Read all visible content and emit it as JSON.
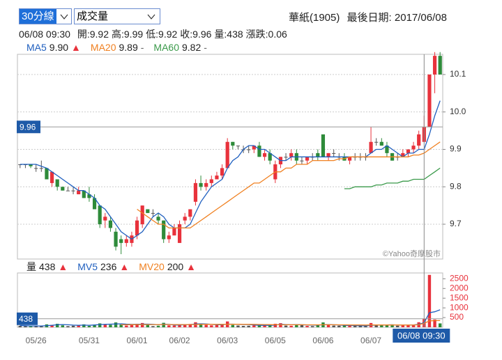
{
  "controls": {
    "period": "30分線",
    "indicator": "成交量"
  },
  "header": {
    "title": "華紙(1905)",
    "last_date": "最後日期: 2017/06/08"
  },
  "info": [
    "開:9.92",
    "高:9.99",
    "低:9.92",
    "收:9.96",
    "量:438",
    "漲跌:0.06"
  ],
  "chart_data": [
    {
      "type": "candlestick",
      "categories": [
        null,
        null,
        null,
        "05/26",
        null,
        null,
        null,
        null,
        null,
        null,
        null,
        null,
        null,
        "05/31",
        null,
        null,
        null,
        null,
        null,
        null,
        null,
        null,
        "06/01",
        null,
        null,
        null,
        null,
        null,
        null,
        null,
        "06/02",
        null,
        null,
        null,
        null,
        null,
        null,
        null,
        null,
        "06/03",
        null,
        null,
        null,
        null,
        null,
        null,
        null,
        null,
        "06/05",
        null,
        null,
        null,
        null,
        null,
        null,
        null,
        null,
        "06/06",
        null,
        null,
        null,
        null,
        null,
        null,
        null,
        null,
        "06/07",
        null,
        null,
        null,
        null,
        null,
        null,
        null,
        null,
        null,
        "06/08 09:30",
        null,
        null,
        null
      ],
      "ohlc": [
        [
          9.86,
          9.86,
          9.85,
          9.86
        ],
        [
          9.86,
          9.86,
          9.85,
          9.86
        ],
        [
          9.86,
          9.86,
          9.85,
          9.855
        ],
        [
          9.85,
          9.86,
          9.84,
          9.85
        ],
        [
          9.85,
          9.87,
          9.84,
          9.85
        ],
        [
          9.85,
          9.85,
          9.82,
          9.82
        ],
        [
          9.81,
          9.84,
          9.8,
          9.84
        ],
        [
          9.82,
          9.82,
          9.79,
          9.8
        ],
        [
          9.8,
          9.8,
          9.79,
          9.79
        ],
        [
          9.79,
          9.8,
          9.79,
          9.79
        ],
        [
          9.79,
          9.8,
          9.78,
          9.79
        ],
        [
          9.78,
          9.8,
          9.78,
          9.79
        ],
        [
          9.79,
          9.79,
          9.77,
          9.77
        ],
        [
          9.78,
          9.8,
          9.76,
          9.77
        ],
        [
          9.77,
          9.78,
          9.74,
          9.74
        ],
        [
          9.75,
          9.75,
          9.69,
          9.7
        ],
        [
          9.71,
          9.73,
          9.69,
          9.72
        ],
        [
          9.71,
          9.72,
          9.68,
          9.69
        ],
        [
          9.68,
          9.69,
          9.63,
          9.64
        ],
        [
          9.66,
          9.67,
          9.62,
          9.65
        ],
        [
          9.65,
          9.67,
          9.64,
          9.66
        ],
        [
          9.65,
          9.68,
          9.64,
          9.67
        ],
        [
          9.67,
          9.72,
          9.66,
          9.71
        ],
        [
          9.7,
          9.75,
          9.69,
          9.75
        ],
        [
          9.74,
          9.74,
          9.73,
          9.73
        ],
        [
          9.73,
          9.74,
          9.72,
          9.73
        ],
        [
          9.72,
          9.73,
          9.7,
          9.71
        ],
        [
          9.71,
          9.71,
          9.65,
          9.66
        ],
        [
          9.66,
          9.68,
          9.65,
          9.67
        ],
        [
          9.67,
          9.7,
          9.67,
          9.69
        ],
        [
          9.65,
          9.71,
          9.65,
          9.7
        ],
        [
          9.71,
          9.73,
          9.7,
          9.72
        ],
        [
          9.72,
          9.74,
          9.71,
          9.74
        ],
        [
          9.76,
          9.82,
          9.75,
          9.81
        ],
        [
          9.81,
          9.83,
          9.79,
          9.8
        ],
        [
          9.8,
          9.82,
          9.79,
          9.81
        ],
        [
          9.81,
          9.83,
          9.8,
          9.82
        ],
        [
          9.82,
          9.84,
          9.82,
          9.83
        ],
        [
          9.83,
          9.86,
          9.82,
          9.85
        ],
        [
          9.85,
          9.93,
          9.85,
          9.92
        ],
        [
          9.92,
          9.92,
          9.9,
          9.91
        ],
        [
          9.91,
          9.91,
          9.9,
          9.91
        ],
        [
          9.9,
          9.91,
          9.89,
          9.9
        ],
        [
          9.9,
          9.91,
          9.89,
          9.9
        ],
        [
          9.9,
          9.91,
          9.89,
          9.91
        ],
        [
          9.91,
          9.92,
          9.88,
          9.88
        ],
        [
          9.88,
          9.9,
          9.87,
          9.89
        ],
        [
          9.89,
          9.9,
          9.86,
          9.87
        ],
        [
          9.82,
          9.87,
          9.81,
          9.86
        ],
        [
          9.86,
          9.88,
          9.85,
          9.88
        ],
        [
          9.88,
          9.89,
          9.87,
          9.88
        ],
        [
          9.88,
          9.9,
          9.87,
          9.89
        ],
        [
          9.89,
          9.9,
          9.86,
          9.87
        ],
        [
          9.87,
          9.88,
          9.86,
          9.87
        ],
        [
          9.87,
          9.88,
          9.86,
          9.88
        ],
        [
          9.88,
          9.89,
          9.87,
          9.88
        ],
        [
          9.89,
          9.9,
          9.87,
          9.88
        ],
        [
          9.94,
          9.94,
          9.88,
          9.88
        ],
        [
          9.88,
          9.89,
          9.87,
          9.89
        ],
        [
          9.89,
          9.9,
          9.88,
          9.89
        ],
        [
          9.88,
          9.89,
          9.87,
          9.88
        ],
        [
          9.88,
          9.89,
          9.87,
          9.87
        ],
        [
          9.87,
          9.88,
          9.86,
          9.88
        ],
        [
          9.88,
          9.89,
          9.87,
          9.88
        ],
        [
          9.88,
          9.89,
          9.87,
          9.88
        ],
        [
          9.88,
          9.89,
          9.87,
          9.88
        ],
        [
          9.89,
          9.96,
          9.89,
          9.92
        ],
        [
          9.92,
          9.93,
          9.91,
          9.92
        ],
        [
          9.92,
          9.93,
          9.91,
          9.91
        ],
        [
          9.91,
          9.92,
          9.88,
          9.89
        ],
        [
          9.89,
          9.89,
          9.87,
          9.87
        ],
        [
          9.88,
          9.89,
          9.87,
          9.88
        ],
        [
          9.88,
          9.9,
          9.88,
          9.89
        ],
        [
          9.89,
          9.9,
          9.88,
          9.9
        ],
        [
          9.9,
          9.92,
          9.89,
          9.91
        ],
        [
          9.91,
          9.95,
          9.9,
          9.94
        ],
        [
          9.92,
          9.99,
          9.92,
          9.96
        ],
        [
          9.96,
          10.1,
          9.96,
          10.1
        ],
        [
          10.1,
          10.16,
          10.05,
          10.15
        ],
        [
          10.15,
          10.16,
          10.1,
          10.1
        ]
      ],
      "up_color": "#e8323c",
      "down_color": "#2e8b3a",
      "flat_color": "#555555",
      "series": [
        {
          "name": "MA5",
          "color": "#1f5fbf",
          "legend_value": "9.90",
          "legend_mark": "▲",
          "legend_mark_color": "#e8323c",
          "values": [
            9.86,
            9.86,
            9.86,
            9.86,
            9.855,
            9.85,
            9.84,
            9.83,
            9.82,
            9.81,
            9.8,
            9.79,
            9.79,
            9.78,
            9.77,
            9.75,
            9.74,
            9.72,
            9.7,
            9.68,
            9.67,
            9.66,
            9.67,
            9.68,
            9.7,
            9.72,
            9.73,
            9.72,
            9.7,
            9.69,
            9.69,
            9.69,
            9.7,
            9.73,
            9.76,
            9.78,
            9.8,
            9.81,
            9.82,
            9.85,
            9.87,
            9.88,
            9.9,
            9.91,
            9.91,
            9.9,
            9.9,
            9.89,
            9.88,
            9.87,
            9.87,
            9.88,
            9.88,
            9.88,
            9.88,
            9.88,
            9.88,
            9.88,
            9.88,
            9.88,
            9.88,
            9.88,
            9.88,
            9.88,
            9.88,
            9.88,
            9.89,
            9.9,
            9.9,
            9.91,
            9.9,
            9.89,
            9.88,
            9.89,
            9.89,
            9.9,
            9.9,
            9.94,
            9.99,
            10.03
          ]
        },
        {
          "name": "MA20",
          "color": "#f08020",
          "legend_value": "9.89",
          "legend_mark": "-",
          "legend_mark_color": "#666666",
          "values": [
            null,
            null,
            null,
            null,
            null,
            null,
            null,
            null,
            null,
            null,
            null,
            null,
            null,
            null,
            null,
            null,
            null,
            null,
            null,
            null,
            null,
            null,
            9.74,
            9.73,
            9.72,
            9.71,
            9.7,
            9.7,
            9.69,
            9.69,
            9.69,
            9.69,
            9.69,
            9.7,
            9.71,
            9.72,
            9.73,
            9.74,
            9.75,
            9.76,
            9.77,
            9.78,
            9.79,
            9.8,
            9.81,
            9.81,
            9.82,
            9.83,
            9.84,
            9.84,
            9.85,
            9.85,
            9.86,
            9.86,
            9.86,
            9.87,
            9.87,
            9.87,
            9.87,
            9.87,
            9.875,
            9.875,
            9.88,
            9.88,
            9.88,
            9.88,
            9.88,
            9.88,
            9.88,
            9.88,
            9.88,
            9.88,
            9.88,
            9.88,
            9.885,
            9.885,
            9.89,
            9.9,
            9.91,
            9.92
          ]
        },
        {
          "name": "MA60",
          "color": "#3a9a4a",
          "legend_value": "9.82",
          "legend_mark": "-",
          "legend_mark_color": "#666666",
          "values": [
            null,
            null,
            null,
            null,
            null,
            null,
            null,
            null,
            null,
            null,
            null,
            null,
            null,
            null,
            null,
            null,
            null,
            null,
            null,
            null,
            null,
            null,
            null,
            null,
            null,
            null,
            null,
            null,
            null,
            null,
            null,
            null,
            null,
            null,
            null,
            null,
            null,
            null,
            null,
            null,
            null,
            null,
            null,
            null,
            null,
            null,
            null,
            null,
            null,
            null,
            null,
            null,
            null,
            null,
            null,
            null,
            null,
            null,
            null,
            null,
            null,
            9.795,
            9.795,
            9.8,
            9.8,
            9.8,
            9.8,
            9.805,
            9.805,
            9.81,
            9.81,
            9.81,
            9.815,
            9.815,
            9.82,
            9.82,
            9.82,
            9.83,
            9.84,
            9.85
          ]
        }
      ],
      "ylim": [
        9.607,
        10.154
      ],
      "yticks": [
        9.7,
        9.8,
        9.9,
        {
          "value": 10,
          "label": "10.0"
        },
        10.1
      ],
      "grid": true,
      "watermark": "©Yahoo奇摩股市"
    },
    {
      "type": "bar",
      "label": "量",
      "label_mark": "▲",
      "label_mark_color": "#e8323c",
      "values": [
        80,
        60,
        50,
        70,
        90,
        150,
        120,
        180,
        100,
        60,
        80,
        90,
        150,
        70,
        120,
        200,
        160,
        130,
        250,
        140,
        90,
        110,
        180,
        220,
        120,
        60,
        80,
        230,
        100,
        90,
        150,
        130,
        170,
        260,
        150,
        120,
        100,
        110,
        130,
        300,
        120,
        90,
        70,
        80,
        100,
        140,
        90,
        110,
        180,
        210,
        90,
        80,
        120,
        130,
        70,
        60,
        90,
        250,
        120,
        90,
        80,
        100,
        90,
        70,
        80,
        60,
        220,
        110,
        90,
        140,
        120,
        80,
        90,
        100,
        130,
        260,
        438,
        2700,
        400,
        200
      ],
      "series": [
        {
          "name": "MV5",
          "color": "#1f5fbf",
          "legend_mark": "▲",
          "legend_mark_color": "#e8323c",
          "values": [
            90,
            80,
            70,
            70,
            70,
            85,
            100,
            130,
            140,
            130,
            110,
            100,
            110,
            100,
            120,
            140,
            150,
            160,
            170,
            180,
            160,
            150,
            150,
            160,
            160,
            150,
            130,
            160,
            150,
            120,
            120,
            130,
            140,
            170,
            180,
            170,
            150,
            130,
            130,
            160,
            160,
            150,
            140,
            140,
            120,
            100,
            100,
            100,
            110,
            150,
            140,
            130,
            140,
            130,
            120,
            110,
            110,
            130,
            140,
            130,
            120,
            100,
            90,
            90,
            80,
            80,
            100,
            110,
            110,
            120,
            130,
            110,
            110,
            110,
            120,
            150,
            236,
            750,
            800,
            900
          ]
        },
        {
          "name": "MV20",
          "color": "#f08020",
          "legend_mark": "▲",
          "legend_mark_color": "#e8323c",
          "values": [
            null,
            null,
            null,
            null,
            null,
            null,
            null,
            null,
            null,
            null,
            null,
            null,
            null,
            null,
            null,
            null,
            null,
            null,
            null,
            130,
            130,
            135,
            135,
            140,
            140,
            140,
            140,
            145,
            145,
            140,
            140,
            140,
            140,
            145,
            150,
            150,
            150,
            150,
            150,
            155,
            155,
            155,
            150,
            150,
            150,
            145,
            140,
            135,
            130,
            130,
            130,
            130,
            130,
            130,
            125,
            125,
            125,
            130,
            130,
            130,
            125,
            125,
            120,
            120,
            120,
            115,
            120,
            120,
            120,
            120,
            120,
            120,
            115,
            115,
            120,
            130,
            200,
            330,
            340,
            350
          ]
        }
      ],
      "ylim": [
        0,
        2800
      ],
      "yticks": [
        500,
        1000,
        1500,
        2000,
        2500
      ],
      "tick_color": "#e8323c"
    }
  ]
}
